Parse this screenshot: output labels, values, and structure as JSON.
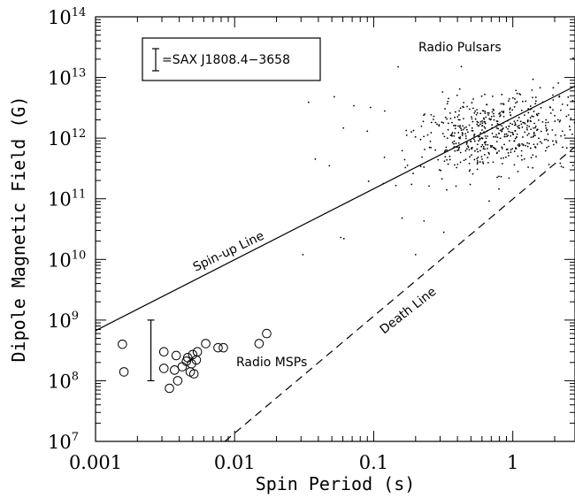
{
  "chart_data": {
    "type": "scatter",
    "xlabel": "Spin Period (s)",
    "ylabel": "Dipole Magnetic Field (G)",
    "xscale": "log",
    "yscale": "log",
    "xlim": [
      0.001,
      2.8
    ],
    "ylim": [
      10000000.0,
      100000000000000.0
    ],
    "x_ticks": [
      {
        "value": 0.001,
        "label": "0.001"
      },
      {
        "value": 0.01,
        "label": "0.01"
      },
      {
        "value": 0.1,
        "label": "0.1"
      },
      {
        "value": 1,
        "label": "1"
      }
    ],
    "y_ticks": [
      {
        "value": 10000000.0,
        "base": "10",
        "exp": "7"
      },
      {
        "value": 100000000.0,
        "base": "10",
        "exp": "8"
      },
      {
        "value": 1000000000.0,
        "base": "10",
        "exp": "9"
      },
      {
        "value": 10000000000.0,
        "base": "10",
        "exp": "10"
      },
      {
        "value": 100000000000.0,
        "base": "10",
        "exp": "11"
      },
      {
        "value": 1000000000000.0,
        "base": "10",
        "exp": "12"
      },
      {
        "value": 10000000000000.0,
        "base": "10",
        "exp": "13"
      },
      {
        "value": 100000000000000.0,
        "base": "10",
        "exp": "14"
      }
    ],
    "lines": [
      {
        "name": "Spin-up Line",
        "style": "solid",
        "x": [
          0.001,
          2.8
        ],
        "y": [
          670000000.0,
          7200000000000.0
        ]
      },
      {
        "name": "Death Line",
        "style": "dashed",
        "x": [
          0.0085,
          2.8
        ],
        "y": [
          10000000.0,
          720000000000.0
        ]
      }
    ],
    "error_bar": {
      "x": 0.0025,
      "y_low": 100000000.0,
      "y_high": 1000000000.0
    },
    "legend": {
      "text": "=SAX J1808.4−3658",
      "placement": "top-left"
    },
    "annotations": [
      {
        "text": "Radio Pulsars"
      },
      {
        "text": "Radio MSPs"
      },
      {
        "text": "Spin-up Line"
      },
      {
        "text": "Death Line"
      }
    ],
    "series": [
      {
        "name": "Radio MSPs",
        "marker": "open-circle",
        "points": [
          [
            0.00156,
            400000000.0
          ],
          [
            0.0016,
            140000000.0
          ],
          [
            0.0031,
            300000000.0
          ],
          [
            0.0031,
            160000000.0
          ],
          [
            0.0034,
            75000000.0
          ],
          [
            0.0037,
            150000000.0
          ],
          [
            0.0038,
            260000000.0
          ],
          [
            0.0039,
            100000000.0
          ],
          [
            0.0042,
            170000000.0
          ],
          [
            0.0045,
            210000000.0
          ],
          [
            0.0046,
            240000000.0
          ],
          [
            0.0048,
            140000000.0
          ],
          [
            0.0049,
            190000000.0
          ],
          [
            0.005,
            270000000.0
          ],
          [
            0.0051,
            130000000.0
          ],
          [
            0.0053,
            220000000.0
          ],
          [
            0.0054,
            300000000.0
          ],
          [
            0.0062,
            410000000.0
          ],
          [
            0.0076,
            350000000.0
          ],
          [
            0.0083,
            350000000.0
          ],
          [
            0.015,
            410000000.0
          ],
          [
            0.017,
            600000000.0
          ]
        ]
      },
      {
        "name": "Radio Pulsars",
        "marker": "dot",
        "seed": 7,
        "count": 560,
        "log10_x_mean": -0.1,
        "log10_x_sd": 0.32,
        "log10_y_mean": 12.1,
        "log10_y_sd": 0.33,
        "x_range": [
          0.03,
          2.8
        ],
        "y_range": [
          10000000000.0,
          25000000000000.0
        ],
        "extra_points": [
          [
            0.031,
            12000000000.0
          ],
          [
            0.034,
            3900000000000.0
          ],
          [
            0.038,
            450000000000.0
          ],
          [
            0.048,
            350000000000.0
          ],
          [
            0.052,
            4800000000000.0
          ],
          [
            0.058,
            23000000000.0
          ],
          [
            0.061,
            22000000000.0
          ],
          [
            0.09,
            1300000000000.0
          ],
          [
            0.095,
            3200000000000.0
          ],
          [
            0.12,
            2800000000000.0
          ],
          [
            0.15,
            15000000000000.0
          ],
          [
            0.16,
            48000000000.0
          ],
          [
            0.2,
            12000000000.0
          ],
          [
            0.23,
            43000000000.0
          ]
        ]
      }
    ]
  }
}
